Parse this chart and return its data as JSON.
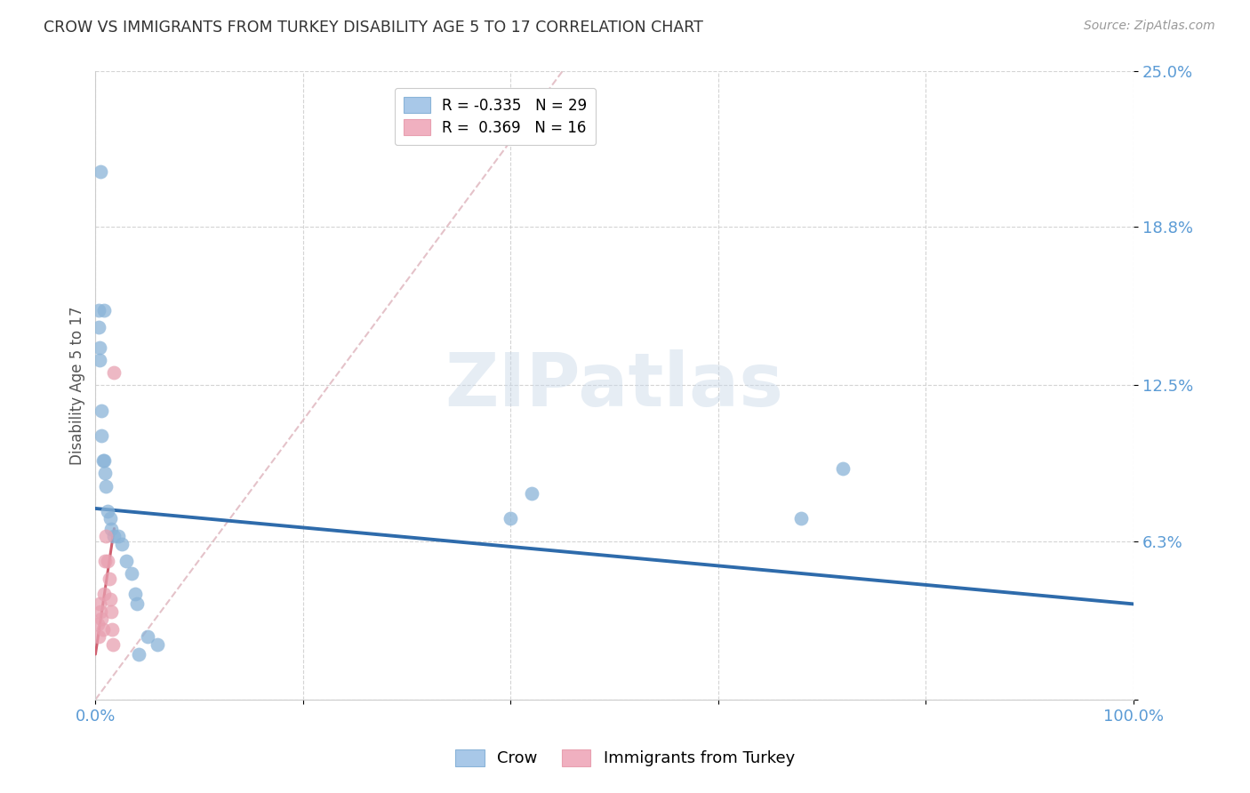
{
  "title": "CROW VS IMMIGRANTS FROM TURKEY DISABILITY AGE 5 TO 17 CORRELATION CHART",
  "source": "Source: ZipAtlas.com",
  "ylabel": "Disability Age 5 to 17",
  "xlim": [
    0.0,
    1.0
  ],
  "ylim": [
    0.0,
    0.25
  ],
  "ytick_vals": [
    0.0,
    0.063,
    0.125,
    0.188,
    0.25
  ],
  "ytick_labels": [
    "",
    "6.3%",
    "12.5%",
    "18.8%",
    "25.0%"
  ],
  "xtick_positions": [
    0.0,
    0.2,
    0.4,
    0.6,
    0.8,
    1.0
  ],
  "xtick_labels": [
    "0.0%",
    "",
    "",
    "",
    "",
    "100.0%"
  ],
  "background_color": "#ffffff",
  "watermark_text": "ZIPatlas",
  "crow_scatter_x": [
    0.005,
    0.008,
    0.003,
    0.003,
    0.004,
    0.004,
    0.006,
    0.006,
    0.007,
    0.008,
    0.009,
    0.01,
    0.012,
    0.014,
    0.015,
    0.018,
    0.022,
    0.025,
    0.03,
    0.035,
    0.038,
    0.04,
    0.042,
    0.05,
    0.06,
    0.4,
    0.42,
    0.68,
    0.72
  ],
  "crow_scatter_y": [
    0.21,
    0.155,
    0.155,
    0.148,
    0.14,
    0.135,
    0.115,
    0.105,
    0.095,
    0.095,
    0.09,
    0.085,
    0.075,
    0.072,
    0.068,
    0.065,
    0.065,
    0.062,
    0.055,
    0.05,
    0.042,
    0.038,
    0.018,
    0.025,
    0.022,
    0.072,
    0.082,
    0.072,
    0.092
  ],
  "turkey_scatter_x": [
    0.002,
    0.003,
    0.004,
    0.005,
    0.006,
    0.007,
    0.008,
    0.009,
    0.01,
    0.012,
    0.013,
    0.014,
    0.015,
    0.016,
    0.017,
    0.018
  ],
  "turkey_scatter_y": [
    0.03,
    0.025,
    0.038,
    0.035,
    0.032,
    0.028,
    0.042,
    0.055,
    0.065,
    0.055,
    0.048,
    0.04,
    0.035,
    0.028,
    0.022,
    0.13
  ],
  "crow_line_x": [
    0.0,
    1.0
  ],
  "crow_line_y": [
    0.076,
    0.038
  ],
  "turkey_solid_line_x": [
    0.0,
    0.018
  ],
  "turkey_solid_line_y": [
    0.018,
    0.068
  ],
  "turkey_dashed_line_x": [
    0.0,
    0.45
  ],
  "turkey_dashed_line_y": [
    0.0,
    0.25
  ],
  "crow_dot_color": "#8ab4d8",
  "turkey_dot_color": "#e8a0b0",
  "crow_line_color": "#2e6bab",
  "turkey_solid_color": "#d06070",
  "turkey_dashed_color": "#e0b8c0",
  "grid_color": "#d0d0d0",
  "legend_box_color": "#a8c8e8",
  "legend_box_color2": "#f0b0c0"
}
